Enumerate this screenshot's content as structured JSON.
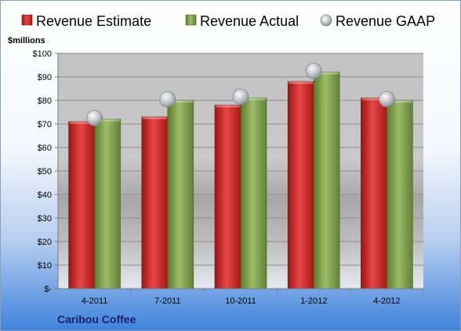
{
  "chart_data": {
    "type": "bar",
    "company": "Caribou Coffee",
    "y_unit_label": "$millions",
    "categories": [
      "4-2011",
      "7-2011",
      "10-2011",
      "1-2012",
      "4-2012"
    ],
    "series": [
      {
        "name": "Revenue Estimate",
        "kind": "bar",
        "color": "#d42a2a",
        "values": [
          71,
          73,
          78,
          88,
          81
        ]
      },
      {
        "name": "Revenue Actual",
        "kind": "bar",
        "color": "#8caa58",
        "values": [
          72,
          80,
          81,
          92,
          80
        ]
      },
      {
        "name": "Revenue GAAP",
        "kind": "marker",
        "color": "#b8bcc4",
        "values": [
          72.5,
          80.5,
          81.5,
          92.5,
          80.5
        ]
      }
    ],
    "ylim": [
      0,
      100
    ],
    "y_ticks": [
      0,
      10,
      20,
      30,
      40,
      50,
      60,
      70,
      80,
      90,
      100
    ],
    "y_tick_labels": [
      "$-",
      "$10",
      "$20",
      "$30",
      "$40",
      "$50",
      "$60",
      "$70",
      "$80",
      "$90",
      "$100"
    ],
    "grid": true,
    "legend_position": "top"
  }
}
